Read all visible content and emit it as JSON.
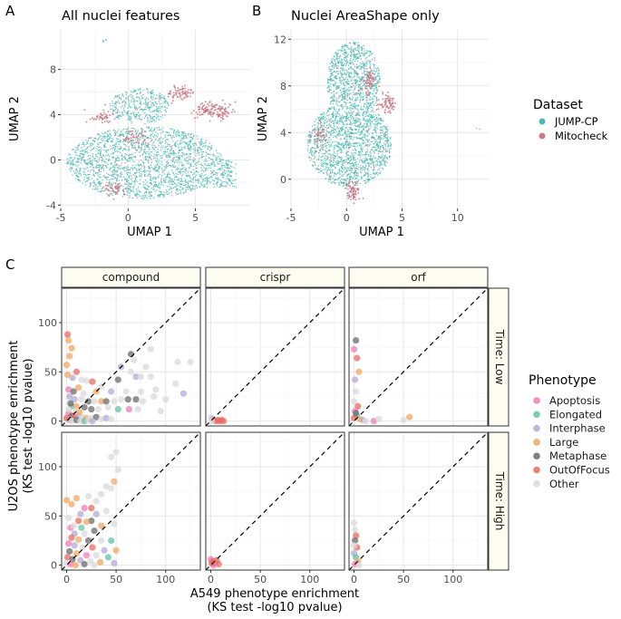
{
  "colors": {
    "jump": "#4fb8b3",
    "mitocheck": "#c97a86",
    "grid": "#e6e6e6",
    "axis": "#333333",
    "strip_fill": "#fcfdf0",
    "strip_border": "#333333",
    "apoptosis": "#f27cb5",
    "elongated": "#66c2a5",
    "interphase": "#b3aad1",
    "large": "#f0a762",
    "metaphase": "#6b6b6b",
    "outoffocus": "#ec6a5e",
    "other": "#d9d9d9"
  },
  "panel_letters": {
    "a": "A",
    "b": "B",
    "c": "C"
  },
  "legend_dataset": {
    "title": "Dataset",
    "items": [
      "JUMP-CP",
      "Mitocheck"
    ]
  },
  "legend_phenotype": {
    "title": "Phenotype",
    "items": [
      "Apoptosis",
      "Elongated",
      "Interphase",
      "Large",
      "Metaphase",
      "OutOfFocus",
      "Other"
    ]
  },
  "chart_data": [
    {
      "id": "A",
      "type": "scatter",
      "title": "All nuclei features",
      "xlabel": "UMAP 1",
      "ylabel": "UMAP 2",
      "xlim": [
        -5,
        9
      ],
      "ylim": [
        -4.3,
        11.5
      ],
      "xticks": [
        -5,
        0,
        5
      ],
      "yticks": [
        -4,
        0,
        4,
        8
      ],
      "series": [
        {
          "name": "JUMP-CP",
          "description": "large blob roughly x -4.5..8, y -3.5..3.5, upper lobe x -1..3, y 4..7"
        },
        {
          "name": "Mitocheck",
          "clusters": [
            [
              3.8,
              6.0
            ],
            [
              5.7,
              4.5
            ],
            [
              6.8,
              4.3
            ],
            [
              -2.0,
              3.8
            ],
            [
              0.5,
              2.0
            ],
            [
              -1.0,
              -2.5
            ]
          ]
        }
      ]
    },
    {
      "id": "B",
      "type": "scatter",
      "title": "Nuclei AreaShape only",
      "xlabel": "UMAP 1",
      "ylabel": "UMAP 2",
      "xlim": [
        -5,
        12.8
      ],
      "ylim": [
        -2.5,
        12.8
      ],
      "xticks": [
        -5,
        0,
        5,
        10
      ],
      "yticks": [
        0,
        4,
        8,
        12
      ],
      "series": [
        {
          "name": "JUMP-CP",
          "description": "tall shape x -4..4, y -1..12, isolated points near (11.8, 4.5)"
        },
        {
          "name": "Mitocheck",
          "clusters": [
            [
              3.5,
              6.5
            ],
            [
              2.0,
              8.5
            ],
            [
              0.5,
              -1.0
            ],
            [
              -2.5,
              4.0
            ]
          ]
        }
      ]
    },
    {
      "id": "C",
      "type": "scatter",
      "xlabel_lines": [
        "A549 phenotype enrichment",
        "(KS test -log10 pvalue)"
      ],
      "ylabel_lines": [
        "U2OS phenotype enrichment",
        "(KS test -log10 pvalue)"
      ],
      "facet_cols": [
        "compound",
        "crispr",
        "orf"
      ],
      "facet_rows": [
        "Time: Low",
        "Time: High"
      ],
      "xlim": [
        -5,
        135
      ],
      "ylim": [
        -5,
        135
      ],
      "xticks": [
        0,
        50,
        100
      ],
      "yticks": [
        0,
        50,
        100
      ],
      "reference_line": "y = x (dashed)",
      "points": {
        "compound|Time: Low": [
          [
            1,
            88,
            "outoffocus"
          ],
          [
            2,
            82,
            "large"
          ],
          [
            5,
            74,
            "large"
          ],
          [
            3,
            66,
            "large"
          ],
          [
            0,
            57,
            "large"
          ],
          [
            10,
            50,
            "outoffocus"
          ],
          [
            1,
            47,
            "large"
          ],
          [
            6,
            44,
            "interphase"
          ],
          [
            15,
            42,
            "other"
          ],
          [
            20,
            41,
            "other"
          ],
          [
            26,
            40,
            "outoffocus"
          ],
          [
            35,
            35,
            "other"
          ],
          [
            12,
            34,
            "large"
          ],
          [
            2,
            32,
            "apoptosis"
          ],
          [
            7,
            30,
            "metaphase"
          ],
          [
            17,
            28,
            "other"
          ],
          [
            30,
            30,
            "large"
          ],
          [
            45,
            30,
            "interphase"
          ],
          [
            60,
            30,
            "other"
          ],
          [
            75,
            30,
            "other"
          ],
          [
            90,
            32,
            "other"
          ],
          [
            3,
            25,
            "interphase"
          ],
          [
            8,
            22,
            "interphase"
          ],
          [
            15,
            22,
            "other"
          ],
          [
            22,
            20,
            "metaphase"
          ],
          [
            28,
            20,
            "other"
          ],
          [
            35,
            20,
            "large"
          ],
          [
            40,
            20,
            "metaphase"
          ],
          [
            48,
            20,
            "other"
          ],
          [
            55,
            22,
            "other"
          ],
          [
            62,
            22,
            "metaphase"
          ],
          [
            70,
            22,
            "metaphase"
          ],
          [
            77,
            20,
            "other"
          ],
          [
            88,
            25,
            "other"
          ],
          [
            100,
            22,
            "other"
          ],
          [
            118,
            28,
            "interphase"
          ],
          [
            5,
            15,
            "elongated"
          ],
          [
            10,
            15,
            "large"
          ],
          [
            18,
            14,
            "metaphase"
          ],
          [
            25,
            12,
            "metaphase"
          ],
          [
            32,
            12,
            "other"
          ],
          [
            42,
            14,
            "other"
          ],
          [
            52,
            12,
            "elongated"
          ],
          [
            63,
            12,
            "apoptosis"
          ],
          [
            72,
            12,
            "other"
          ],
          [
            95,
            10,
            "other"
          ],
          [
            2,
            8,
            "apoptosis"
          ],
          [
            5,
            5,
            "metaphase"
          ],
          [
            8,
            6,
            "outoffocus"
          ],
          [
            12,
            5,
            "interphase"
          ],
          [
            16,
            4,
            "other"
          ],
          [
            20,
            3,
            "large"
          ],
          [
            25,
            3,
            "other"
          ],
          [
            30,
            4,
            "metaphase"
          ],
          [
            35,
            2,
            "other"
          ],
          [
            40,
            3,
            "interphase"
          ],
          [
            45,
            2,
            "other"
          ],
          [
            1,
            2,
            "other"
          ],
          [
            3,
            1,
            "interphase"
          ],
          [
            6,
            0,
            "other"
          ],
          [
            10,
            1,
            "metaphase"
          ],
          [
            14,
            0,
            "other"
          ],
          [
            18,
            0,
            "elongated"
          ],
          [
            22,
            1,
            "other"
          ],
          [
            26,
            0,
            "interphase"
          ],
          [
            2,
            12,
            "other"
          ],
          [
            4,
            18,
            "metaphase"
          ],
          [
            0,
            3,
            "outoffocus"
          ],
          [
            9,
            10,
            "other"
          ],
          [
            13,
            9,
            "large"
          ],
          [
            65,
            68,
            "metaphase"
          ],
          [
            68,
            62,
            "other"
          ],
          [
            85,
            73,
            "other"
          ],
          [
            112,
            60,
            "other"
          ],
          [
            80,
            55,
            "other"
          ],
          [
            70,
            45,
            "interphase"
          ],
          [
            55,
            55,
            "interphase"
          ],
          [
            65,
            50,
            "other"
          ],
          [
            75,
            45,
            "other"
          ],
          [
            52,
            42,
            "metaphase"
          ],
          [
            85,
            45,
            "other"
          ],
          [
            110,
            38,
            "other"
          ],
          [
            125,
            60,
            "other"
          ]
        ],
        "crispr|Time: Low": [
          [
            0,
            4,
            "other"
          ],
          [
            2,
            2,
            "interphase"
          ],
          [
            3,
            1,
            "apoptosis"
          ],
          [
            5,
            0,
            "outoffocus"
          ],
          [
            7,
            1,
            "outoffocus"
          ],
          [
            9,
            0,
            "outoffocus"
          ],
          [
            11,
            1,
            "outoffocus"
          ],
          [
            13,
            0,
            "outoffocus"
          ],
          [
            1,
            0,
            "other"
          ]
        ],
        "orf|Time: Low": [
          [
            2,
            82,
            "metaphase"
          ],
          [
            0,
            73,
            "apoptosis"
          ],
          [
            3,
            64,
            "outoffocus"
          ],
          [
            5,
            50,
            "large"
          ],
          [
            1,
            42,
            "interphase"
          ],
          [
            2,
            30,
            "other"
          ],
          [
            0,
            20,
            "other"
          ],
          [
            4,
            15,
            "outoffocus"
          ],
          [
            1,
            10,
            "apoptosis"
          ],
          [
            3,
            5,
            "elongated"
          ],
          [
            6,
            2,
            "large"
          ],
          [
            9,
            1,
            "interphase"
          ],
          [
            12,
            0,
            "other"
          ],
          [
            20,
            0,
            "apoptosis"
          ],
          [
            25,
            2,
            "other"
          ],
          [
            50,
            1,
            "other"
          ],
          [
            56,
            4,
            "large"
          ],
          [
            0,
            3,
            "outoffocus"
          ],
          [
            2,
            8,
            "metaphase"
          ]
        ],
        "compound|Time: High": [
          [
            50,
            115,
            "other"
          ],
          [
            45,
            110,
            "other"
          ],
          [
            52,
            97,
            "other"
          ],
          [
            48,
            85,
            "large"
          ],
          [
            40,
            80,
            "other"
          ],
          [
            45,
            78,
            "other"
          ],
          [
            35,
            72,
            "other"
          ],
          [
            22,
            70,
            "other"
          ],
          [
            30,
            65,
            "other"
          ],
          [
            0,
            66,
            "large"
          ],
          [
            5,
            62,
            "large"
          ],
          [
            10,
            68,
            "large"
          ],
          [
            18,
            58,
            "apoptosis"
          ],
          [
            25,
            58,
            "outoffocus"
          ],
          [
            40,
            55,
            "other"
          ],
          [
            30,
            52,
            "interphase"
          ],
          [
            2,
            48,
            "other"
          ],
          [
            12,
            45,
            "outoffocus"
          ],
          [
            25,
            45,
            "metaphase"
          ],
          [
            35,
            40,
            "large"
          ],
          [
            48,
            42,
            "other"
          ],
          [
            4,
            38,
            "apoptosis"
          ],
          [
            15,
            38,
            "elongated"
          ],
          [
            28,
            35,
            "metaphase"
          ],
          [
            8,
            32,
            "interphase"
          ],
          [
            18,
            32,
            "other"
          ],
          [
            5,
            28,
            "outoffocus"
          ],
          [
            12,
            26,
            "large"
          ],
          [
            22,
            25,
            "metaphase"
          ],
          [
            35,
            25,
            "other"
          ],
          [
            45,
            25,
            "elongated"
          ],
          [
            2,
            22,
            "apoptosis"
          ],
          [
            8,
            20,
            "interphase"
          ],
          [
            16,
            18,
            "other"
          ],
          [
            26,
            18,
            "outoffocus"
          ],
          [
            38,
            15,
            "interphase"
          ],
          [
            50,
            15,
            "large"
          ],
          [
            3,
            14,
            "metaphase"
          ],
          [
            10,
            12,
            "large"
          ],
          [
            20,
            10,
            "apoptosis"
          ],
          [
            30,
            10,
            "other"
          ],
          [
            42,
            8,
            "elongated"
          ],
          [
            1,
            8,
            "outoffocus"
          ],
          [
            6,
            6,
            "metaphase"
          ],
          [
            14,
            5,
            "interphase"
          ],
          [
            24,
            4,
            "other"
          ],
          [
            34,
            3,
            "large"
          ],
          [
            48,
            2,
            "interphase"
          ],
          [
            0,
            2,
            "other"
          ],
          [
            4,
            1,
            "apoptosis"
          ],
          [
            9,
            0,
            "large"
          ],
          [
            18,
            1,
            "metaphase"
          ],
          [
            28,
            0,
            "other"
          ],
          [
            7,
            40,
            "other"
          ],
          [
            14,
            52,
            "interphase"
          ],
          [
            20,
            44,
            "large"
          ]
        ],
        "crispr|Time: High": [
          [
            0,
            6,
            "apoptosis"
          ],
          [
            2,
            4,
            "outoffocus"
          ],
          [
            4,
            2,
            "outoffocus"
          ],
          [
            6,
            5,
            "outoffocus"
          ],
          [
            8,
            1,
            "outoffocus"
          ],
          [
            3,
            0,
            "apoptosis"
          ],
          [
            1,
            2,
            "outoffocus"
          ]
        ],
        "orf|Time: High": [
          [
            0,
            43,
            "other"
          ],
          [
            1,
            36,
            "other"
          ],
          [
            2,
            30,
            "outoffocus"
          ],
          [
            1,
            25,
            "metaphase"
          ],
          [
            3,
            18,
            "outoffocus"
          ],
          [
            0,
            12,
            "interphase"
          ],
          [
            2,
            8,
            "elongated"
          ],
          [
            4,
            4,
            "large"
          ],
          [
            1,
            1,
            "apoptosis"
          ],
          [
            5,
            0,
            "other"
          ],
          [
            0,
            20,
            "other"
          ]
        ]
      }
    }
  ]
}
